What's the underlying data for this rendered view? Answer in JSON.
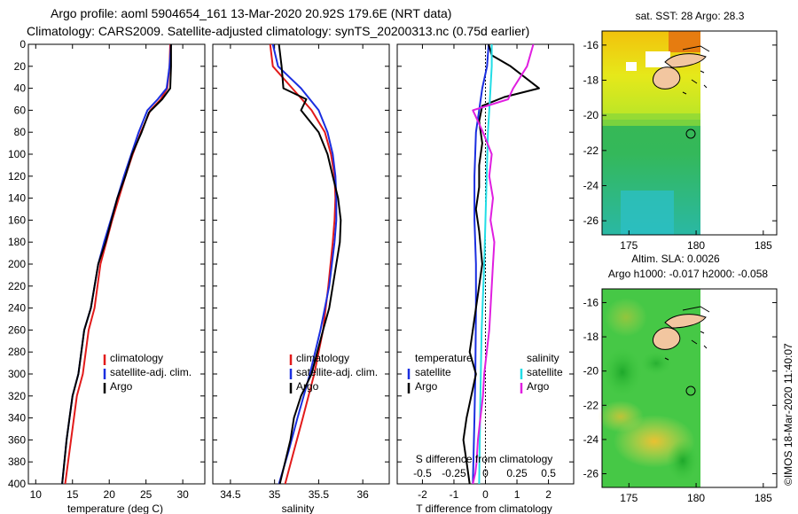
{
  "title": {
    "line1": "Argo profile: aoml 5904654_161 13-Mar-2020 20.92S 179.6E (NRT data)",
    "line2": "Climatology: CARS2009. Satellite-adjusted climatology: synTS_20200313.nc (0.75d earlier)"
  },
  "colors": {
    "climatology": "#e21a1a",
    "satellite": "#1a2ee0",
    "argo": "#000000",
    "sal_satellite": "#22dde6",
    "sal_argo": "#e01ee0"
  },
  "chart_data": [
    {
      "type": "line",
      "name": "temperature-panel",
      "xlabel": "temperature (deg C)",
      "ylabel": "",
      "xlim": [
        9,
        33
      ],
      "ylim": [
        400,
        0
      ],
      "xticks": [
        "10",
        "15",
        "20",
        "25",
        "30"
      ],
      "yticks": [
        "0",
        "20",
        "40",
        "60",
        "80",
        "100",
        "120",
        "140",
        "160",
        "180",
        "200",
        "220",
        "240",
        "260",
        "280",
        "300",
        "320",
        "340",
        "360",
        "380",
        "400"
      ],
      "legend": [
        "climatology",
        "satellite-adj. clim.",
        "Argo"
      ],
      "series": [
        {
          "name": "climatology",
          "color_key": "climatology",
          "x": [
            28.3,
            28.2,
            27.9,
            27.0,
            25.6,
            24.3,
            23.2,
            22.2,
            21.3,
            20.4,
            19.6,
            18.8,
            18.0,
            17.2,
            16.4,
            15.6,
            14.8,
            14.0
          ],
          "y": [
            0,
            20,
            40,
            50,
            60,
            80,
            100,
            120,
            140,
            160,
            180,
            200,
            240,
            260,
            300,
            320,
            360,
            400
          ]
        },
        {
          "name": "satellite-adj. clim.",
          "color_key": "satellite",
          "x": [
            28.4,
            28.2,
            27.8,
            26.6,
            25.2,
            24.0,
            23.0,
            22.0,
            21.1,
            20.2,
            19.3,
            18.5,
            17.5,
            16.6,
            15.8,
            15.0,
            14.2,
            13.6
          ],
          "y": [
            0,
            20,
            40,
            50,
            60,
            80,
            100,
            120,
            140,
            160,
            180,
            200,
            240,
            260,
            300,
            320,
            360,
            400
          ]
        },
        {
          "name": "Argo",
          "color_key": "argo",
          "x": [
            28.4,
            28.4,
            28.3,
            27.2,
            26.0,
            25.4,
            24.4,
            23.1,
            22.2,
            21.1,
            20.3,
            19.5,
            18.5,
            17.5,
            16.6,
            15.8,
            15.0,
            14.6,
            14.2,
            13.9,
            13.6
          ],
          "y": [
            0,
            20,
            40,
            50,
            58,
            62,
            80,
            100,
            120,
            140,
            160,
            180,
            200,
            240,
            260,
            300,
            320,
            340,
            360,
            380,
            400
          ]
        }
      ]
    },
    {
      "type": "line",
      "name": "salinity-panel",
      "xlabel": "salinity",
      "ylabel": "",
      "xlim": [
        34.3,
        36.3
      ],
      "ylim": [
        400,
        0
      ],
      "xticks": [
        "34.5",
        "35",
        "35.5",
        "36"
      ],
      "legend": [
        "climatology",
        "satellite-adj. clim.",
        "Argo"
      ],
      "series": [
        {
          "name": "climatology",
          "color_key": "climatology",
          "x": [
            34.95,
            34.98,
            35.2,
            35.42,
            35.57,
            35.64,
            35.68,
            35.69,
            35.68,
            35.66,
            35.61,
            35.55,
            35.45,
            35.32,
            35.22,
            35.12
          ],
          "y": [
            0,
            20,
            40,
            60,
            80,
            100,
            120,
            140,
            160,
            180,
            220,
            260,
            300,
            340,
            370,
            400
          ]
        },
        {
          "name": "satellite-adj. clim.",
          "color_key": "satellite",
          "x": [
            34.98,
            35.04,
            35.3,
            35.5,
            35.6,
            35.66,
            35.69,
            35.7,
            35.7,
            35.68,
            35.62,
            35.52,
            35.4,
            35.26,
            35.16,
            35.05
          ],
          "y": [
            0,
            20,
            40,
            60,
            80,
            100,
            120,
            140,
            160,
            180,
            220,
            260,
            300,
            340,
            370,
            400
          ]
        },
        {
          "name": "Argo",
          "color_key": "argo",
          "x": [
            35.05,
            35.08,
            35.1,
            35.36,
            35.3,
            35.5,
            35.6,
            35.66,
            35.72,
            35.75,
            35.74,
            35.7,
            35.62,
            35.55,
            35.42,
            35.3,
            35.22,
            35.18,
            35.12,
            35.06
          ],
          "y": [
            0,
            20,
            40,
            50,
            60,
            80,
            100,
            120,
            140,
            160,
            180,
            200,
            240,
            260,
            300,
            320,
            340,
            360,
            380,
            400
          ]
        }
      ]
    },
    {
      "type": "line",
      "name": "difference-panel",
      "xlabel": "T difference from climatology",
      "x2label": "S difference from climatology",
      "xlim": [
        -2.8,
        2.8
      ],
      "x2lim": [
        -0.7,
        0.7
      ],
      "ylim": [
        400,
        0
      ],
      "xticks": [
        "-2",
        "-1",
        "0",
        "1",
        "2"
      ],
      "x2ticks": [
        "-0.5",
        "-0.25",
        "0",
        "0.25",
        "0.5"
      ],
      "legend_left_title": "temperature",
      "legend_right_title": "salinity",
      "legend_left": [
        "satellite",
        "Argo"
      ],
      "legend_right": [
        "satellite",
        "Argo"
      ],
      "series": [
        {
          "name": "temperature satellite",
          "color_key": "satellite",
          "axis": "T",
          "x": [
            0.1,
            0.05,
            -0.1,
            -0.2,
            -0.3,
            -0.35,
            -0.35,
            -0.3,
            -0.3,
            -0.32,
            -0.35,
            -0.4
          ],
          "y": [
            0,
            20,
            40,
            60,
            80,
            120,
            160,
            200,
            240,
            300,
            340,
            400
          ]
        },
        {
          "name": "temperature Argo",
          "color_key": "argo",
          "axis": "T",
          "x": [
            0.1,
            0.2,
            0.8,
            1.7,
            0.6,
            -0.1,
            -0.2,
            -0.1,
            -0.2,
            -0.2,
            -0.3,
            -0.2,
            -0.1,
            -0.3,
            -0.5,
            -0.3,
            -0.6,
            -0.7,
            -0.6,
            -0.5
          ],
          "y": [
            0,
            10,
            20,
            40,
            48,
            56,
            70,
            90,
            110,
            130,
            150,
            170,
            200,
            240,
            280,
            300,
            340,
            360,
            380,
            400
          ]
        },
        {
          "name": "salinity satellite",
          "color_key": "sal_satellite",
          "axis": "S",
          "x": [
            0.05,
            0.05,
            0.04,
            0.03,
            0.02,
            0.01,
            0.0,
            -0.01,
            -0.03,
            -0.04,
            -0.05
          ],
          "y": [
            0,
            20,
            40,
            60,
            80,
            120,
            160,
            200,
            260,
            320,
            400
          ]
        },
        {
          "name": "salinity Argo",
          "color_key": "sal_argo",
          "axis": "S",
          "x": [
            0.38,
            0.33,
            0.22,
            0.18,
            -0.1,
            -0.02,
            0.05,
            0.03,
            0.06,
            0.04,
            0.07,
            0.06,
            0.05,
            0.03,
            -0.01,
            -0.02,
            -0.04,
            -0.06,
            -0.07,
            -0.08,
            -0.1
          ],
          "y": [
            0,
            20,
            40,
            50,
            60,
            80,
            100,
            120,
            140,
            160,
            180,
            200,
            220,
            260,
            300,
            320,
            340,
            360,
            380,
            390,
            400
          ]
        }
      ]
    }
  ],
  "maps": [
    {
      "name": "sst-map",
      "title": "sat. SST: 28 Argo: 28.3",
      "xticks": [
        "175",
        "180",
        "185"
      ],
      "yticks": [
        "-16",
        "-18",
        "-20",
        "-22",
        "-24",
        "-26"
      ],
      "xlim": [
        173,
        186
      ],
      "ylim": [
        -26.8,
        -15.2
      ],
      "profile": {
        "lon": 179.6,
        "lat": -20.92
      }
    },
    {
      "name": "sla-map",
      "title1": "Altim. SLA: 0.0026",
      "title2": "Argo h1000: -0.017 h2000: -0.058",
      "xticks": [
        "175",
        "180",
        "185"
      ],
      "yticks": [
        "-16",
        "-18",
        "-20",
        "-22",
        "-24",
        "-26"
      ],
      "xlim": [
        173,
        186
      ],
      "ylim": [
        -26.8,
        -15.2
      ],
      "profile": {
        "lon": 179.6,
        "lat": -20.92
      }
    }
  ],
  "credit": "©IMOS 18-Mar-2020 11:40:07"
}
